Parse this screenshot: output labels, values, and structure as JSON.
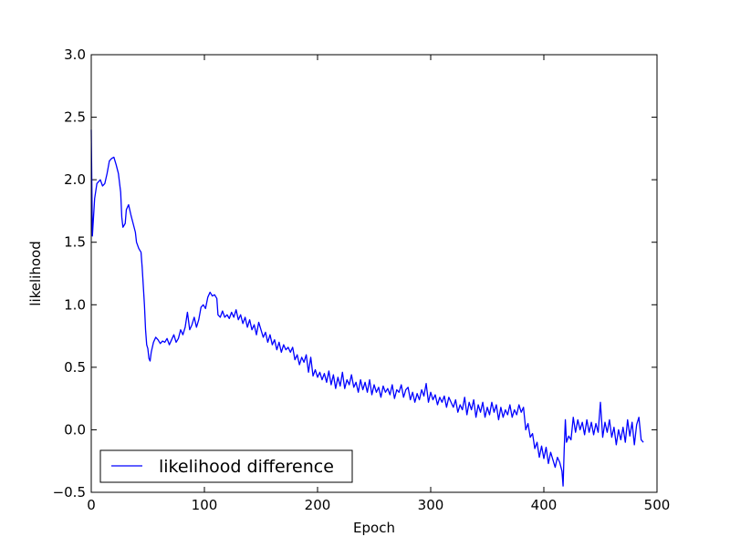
{
  "chart_data": {
    "type": "line",
    "title": "",
    "xlabel": "Epoch",
    "ylabel": "likelihood",
    "xlim": [
      0,
      500
    ],
    "ylim": [
      -0.5,
      3.0
    ],
    "x_ticks": [
      0,
      100,
      200,
      300,
      400,
      500
    ],
    "y_ticks": [
      -0.5,
      0.0,
      0.5,
      1.0,
      1.5,
      2.0,
      2.5,
      3.0
    ],
    "x_tick_labels": [
      "0",
      "100",
      "200",
      "300",
      "400",
      "500"
    ],
    "y_tick_labels": [
      "−0.5",
      "0.0",
      "0.5",
      "1.0",
      "1.5",
      "2.0",
      "2.5",
      "3.0"
    ],
    "grid": false,
    "legend": {
      "position": "bottom-left",
      "entries": [
        "likelihood difference"
      ]
    },
    "series": [
      {
        "name": "likelihood difference",
        "color": "#0000ff",
        "points": [
          [
            0,
            2.4
          ],
          [
            1,
            1.55
          ],
          [
            3,
            1.85
          ],
          [
            5,
            1.97
          ],
          [
            8,
            2.0
          ],
          [
            10,
            1.95
          ],
          [
            12,
            1.97
          ],
          [
            14,
            2.05
          ],
          [
            16,
            2.15
          ],
          [
            18,
            2.17
          ],
          [
            20,
            2.18
          ],
          [
            22,
            2.12
          ],
          [
            24,
            2.05
          ],
          [
            26,
            1.9
          ],
          [
            27,
            1.7
          ],
          [
            28,
            1.62
          ],
          [
            30,
            1.65
          ],
          [
            31,
            1.76
          ],
          [
            33,
            1.8
          ],
          [
            35,
            1.72
          ],
          [
            37,
            1.65
          ],
          [
            39,
            1.58
          ],
          [
            40,
            1.5
          ],
          [
            42,
            1.45
          ],
          [
            44,
            1.42
          ],
          [
            45,
            1.3
          ],
          [
            46,
            1.15
          ],
          [
            47,
            1.0
          ],
          [
            48,
            0.8
          ],
          [
            49,
            0.68
          ],
          [
            50,
            0.65
          ],
          [
            51,
            0.57
          ],
          [
            52,
            0.55
          ],
          [
            53,
            0.62
          ],
          [
            55,
            0.7
          ],
          [
            57,
            0.74
          ],
          [
            59,
            0.72
          ],
          [
            61,
            0.69
          ],
          [
            63,
            0.71
          ],
          [
            65,
            0.7
          ],
          [
            67,
            0.73
          ],
          [
            69,
            0.68
          ],
          [
            71,
            0.72
          ],
          [
            73,
            0.76
          ],
          [
            75,
            0.7
          ],
          [
            77,
            0.73
          ],
          [
            79,
            0.8
          ],
          [
            81,
            0.76
          ],
          [
            83,
            0.82
          ],
          [
            85,
            0.94
          ],
          [
            87,
            0.8
          ],
          [
            89,
            0.84
          ],
          [
            91,
            0.9
          ],
          [
            93,
            0.82
          ],
          [
            95,
            0.88
          ],
          [
            97,
            0.98
          ],
          [
            99,
            1.0
          ],
          [
            101,
            0.97
          ],
          [
            103,
            1.06
          ],
          [
            105,
            1.1
          ],
          [
            107,
            1.07
          ],
          [
            109,
            1.08
          ],
          [
            111,
            1.05
          ],
          [
            112,
            0.92
          ],
          [
            114,
            0.9
          ],
          [
            116,
            0.95
          ],
          [
            118,
            0.9
          ],
          [
            120,
            0.92
          ],
          [
            122,
            0.89
          ],
          [
            124,
            0.94
          ],
          [
            126,
            0.9
          ],
          [
            128,
            0.96
          ],
          [
            130,
            0.88
          ],
          [
            132,
            0.92
          ],
          [
            134,
            0.85
          ],
          [
            136,
            0.9
          ],
          [
            138,
            0.82
          ],
          [
            140,
            0.88
          ],
          [
            142,
            0.8
          ],
          [
            144,
            0.84
          ],
          [
            146,
            0.76
          ],
          [
            148,
            0.86
          ],
          [
            150,
            0.8
          ],
          [
            152,
            0.74
          ],
          [
            154,
            0.78
          ],
          [
            156,
            0.7
          ],
          [
            158,
            0.76
          ],
          [
            160,
            0.68
          ],
          [
            162,
            0.72
          ],
          [
            164,
            0.64
          ],
          [
            166,
            0.7
          ],
          [
            168,
            0.62
          ],
          [
            170,
            0.68
          ],
          [
            172,
            0.64
          ],
          [
            174,
            0.66
          ],
          [
            176,
            0.62
          ],
          [
            178,
            0.66
          ],
          [
            180,
            0.56
          ],
          [
            182,
            0.6
          ],
          [
            184,
            0.52
          ],
          [
            186,
            0.58
          ],
          [
            188,
            0.54
          ],
          [
            190,
            0.6
          ],
          [
            192,
            0.46
          ],
          [
            194,
            0.58
          ],
          [
            196,
            0.43
          ],
          [
            198,
            0.48
          ],
          [
            200,
            0.42
          ],
          [
            202,
            0.46
          ],
          [
            204,
            0.4
          ],
          [
            206,
            0.45
          ],
          [
            208,
            0.38
          ],
          [
            210,
            0.47
          ],
          [
            212,
            0.36
          ],
          [
            214,
            0.44
          ],
          [
            216,
            0.33
          ],
          [
            218,
            0.42
          ],
          [
            220,
            0.35
          ],
          [
            222,
            0.46
          ],
          [
            224,
            0.33
          ],
          [
            226,
            0.4
          ],
          [
            228,
            0.36
          ],
          [
            230,
            0.44
          ],
          [
            232,
            0.34
          ],
          [
            234,
            0.38
          ],
          [
            236,
            0.3
          ],
          [
            238,
            0.4
          ],
          [
            240,
            0.32
          ],
          [
            242,
            0.38
          ],
          [
            244,
            0.3
          ],
          [
            246,
            0.4
          ],
          [
            248,
            0.28
          ],
          [
            250,
            0.36
          ],
          [
            252,
            0.3
          ],
          [
            254,
            0.34
          ],
          [
            256,
            0.26
          ],
          [
            258,
            0.35
          ],
          [
            260,
            0.3
          ],
          [
            262,
            0.33
          ],
          [
            264,
            0.28
          ],
          [
            266,
            0.36
          ],
          [
            268,
            0.25
          ],
          [
            270,
            0.32
          ],
          [
            272,
            0.3
          ],
          [
            274,
            0.36
          ],
          [
            276,
            0.26
          ],
          [
            278,
            0.32
          ],
          [
            280,
            0.34
          ],
          [
            282,
            0.24
          ],
          [
            284,
            0.3
          ],
          [
            286,
            0.22
          ],
          [
            288,
            0.29
          ],
          [
            290,
            0.24
          ],
          [
            292,
            0.32
          ],
          [
            294,
            0.27
          ],
          [
            296,
            0.37
          ],
          [
            298,
            0.22
          ],
          [
            300,
            0.3
          ],
          [
            302,
            0.24
          ],
          [
            304,
            0.28
          ],
          [
            306,
            0.2
          ],
          [
            308,
            0.26
          ],
          [
            310,
            0.22
          ],
          [
            312,
            0.27
          ],
          [
            314,
            0.18
          ],
          [
            316,
            0.26
          ],
          [
            318,
            0.22
          ],
          [
            320,
            0.18
          ],
          [
            322,
            0.24
          ],
          [
            324,
            0.14
          ],
          [
            326,
            0.2
          ],
          [
            328,
            0.16
          ],
          [
            330,
            0.26
          ],
          [
            332,
            0.12
          ],
          [
            334,
            0.22
          ],
          [
            336,
            0.16
          ],
          [
            338,
            0.24
          ],
          [
            340,
            0.1
          ],
          [
            342,
            0.2
          ],
          [
            344,
            0.14
          ],
          [
            346,
            0.22
          ],
          [
            348,
            0.1
          ],
          [
            350,
            0.18
          ],
          [
            352,
            0.12
          ],
          [
            354,
            0.22
          ],
          [
            356,
            0.14
          ],
          [
            358,
            0.2
          ],
          [
            360,
            0.08
          ],
          [
            362,
            0.18
          ],
          [
            364,
            0.1
          ],
          [
            366,
            0.16
          ],
          [
            368,
            0.12
          ],
          [
            370,
            0.2
          ],
          [
            372,
            0.1
          ],
          [
            374,
            0.16
          ],
          [
            376,
            0.12
          ],
          [
            378,
            0.2
          ],
          [
            380,
            0.14
          ],
          [
            382,
            0.18
          ],
          [
            384,
            0.0
          ],
          [
            386,
            0.05
          ],
          [
            388,
            -0.06
          ],
          [
            390,
            -0.03
          ],
          [
            392,
            -0.15
          ],
          [
            394,
            -0.1
          ],
          [
            396,
            -0.22
          ],
          [
            398,
            -0.13
          ],
          [
            400,
            -0.23
          ],
          [
            402,
            -0.14
          ],
          [
            404,
            -0.27
          ],
          [
            406,
            -0.18
          ],
          [
            408,
            -0.24
          ],
          [
            410,
            -0.3
          ],
          [
            412,
            -0.22
          ],
          [
            414,
            -0.26
          ],
          [
            416,
            -0.33
          ],
          [
            417,
            -0.45
          ],
          [
            418,
            -0.15
          ],
          [
            419,
            0.08
          ],
          [
            420,
            -0.1
          ],
          [
            422,
            -0.05
          ],
          [
            424,
            -0.08
          ],
          [
            426,
            0.1
          ],
          [
            428,
            -0.02
          ],
          [
            430,
            0.08
          ],
          [
            432,
            0.0
          ],
          [
            434,
            0.06
          ],
          [
            436,
            -0.04
          ],
          [
            438,
            0.08
          ],
          [
            440,
            -0.02
          ],
          [
            442,
            0.06
          ],
          [
            444,
            -0.04
          ],
          [
            446,
            0.05
          ],
          [
            448,
            -0.02
          ],
          [
            450,
            0.22
          ],
          [
            452,
            -0.06
          ],
          [
            454,
            0.06
          ],
          [
            456,
            -0.02
          ],
          [
            458,
            0.08
          ],
          [
            460,
            -0.06
          ],
          [
            462,
            0.02
          ],
          [
            464,
            -0.12
          ],
          [
            466,
            0.0
          ],
          [
            468,
            -0.08
          ],
          [
            470,
            0.02
          ],
          [
            472,
            -0.1
          ],
          [
            474,
            0.08
          ],
          [
            476,
            -0.05
          ],
          [
            478,
            0.06
          ],
          [
            480,
            -0.12
          ],
          [
            482,
            0.04
          ],
          [
            484,
            0.1
          ],
          [
            486,
            -0.08
          ],
          [
            488,
            -0.1
          ]
        ]
      }
    ]
  }
}
